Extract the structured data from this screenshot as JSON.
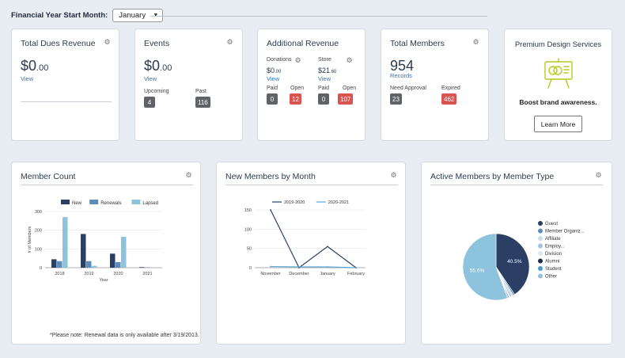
{
  "financial": {
    "label": "Financial Year Start Month:",
    "selected": "January"
  },
  "dues": {
    "title": "Total Dues Revenue",
    "value": "$0",
    "decimals": ".00",
    "link": "View"
  },
  "events": {
    "title": "Events",
    "value": "$0",
    "decimals": ".00",
    "link": "View",
    "upcoming_label": "Upcoming",
    "upcoming": "4",
    "past_label": "Past",
    "past": "116"
  },
  "additional": {
    "title": "Additional Revenue",
    "donations": {
      "label": "Donations",
      "value": "$0",
      "decimals": ".00",
      "link": "View",
      "paid_label": "Paid",
      "paid": "0",
      "open_label": "Open",
      "open": "12"
    },
    "store": {
      "label": "Store",
      "value": "$21",
      "decimals": ".60",
      "link": "View",
      "paid_label": "Paid",
      "paid": "0",
      "open_label": "Open",
      "open": "107"
    }
  },
  "members": {
    "title": "Total Members",
    "value": "954",
    "link": "Records",
    "approval_label": "Need Approval",
    "approval": "23",
    "expired_label": "Expired",
    "expired": "462"
  },
  "premium": {
    "title": "Premium Design Services",
    "tagline": "Boost brand awareness.",
    "button": "Learn More"
  },
  "member_count": {
    "title": "Member Count",
    "note": "*Please note: Renewal data is only available after 3/19/2013."
  },
  "new_members": {
    "title": "New Members by Month"
  },
  "active_members": {
    "title": "Active Members by Member Type"
  },
  "chart_data": [
    {
      "type": "bar",
      "title": "Member Count",
      "categories": [
        "2018",
        "2019",
        "2020",
        "2021"
      ],
      "series": [
        {
          "name": "New",
          "values": [
            45,
            180,
            75,
            3
          ],
          "color": "#2a3f63"
        },
        {
          "name": "Renewals",
          "values": [
            35,
            35,
            30,
            2
          ],
          "color": "#5b8db8"
        },
        {
          "name": "Lapsed",
          "values": [
            270,
            10,
            165,
            0
          ],
          "color": "#8dc3dc"
        }
      ],
      "xlabel": "Year",
      "ylabel": "# of Members",
      "ylim": [
        0,
        300
      ],
      "yticks": [
        "0",
        "100",
        "200",
        "300"
      ],
      "legend": "top"
    },
    {
      "type": "line",
      "title": "New Members by Month",
      "categories": [
        "November",
        "December",
        "January",
        "February"
      ],
      "series": [
        {
          "name": "2019-2020",
          "values": [
            150,
            0,
            55,
            0
          ],
          "color": "#2a3f63"
        },
        {
          "name": "2020-2021",
          "values": [
            3,
            2,
            2,
            0
          ],
          "color": "#5ba7d6"
        }
      ],
      "ylim": [
        0,
        150
      ],
      "yticks": [
        "0",
        "50",
        "100",
        "150"
      ],
      "legend": "top"
    },
    {
      "type": "pie",
      "title": "Active Members by Member Type",
      "legend": "right",
      "slices": [
        {
          "name": "Guest",
          "value": 40.5,
          "label": "40.5%",
          "color": "#2a3f63"
        },
        {
          "name": "Member Organiz...",
          "value": 0.8,
          "label": "",
          "color": "#5b8db8"
        },
        {
          "name": "Affiliate",
          "value": 0.9,
          "label": "",
          "color": "#c7deee"
        },
        {
          "name": "Employ...",
          "value": 0.8,
          "label": "",
          "color": "#9cc4de"
        },
        {
          "name": "Division",
          "value": 0.6,
          "label": "",
          "color": "#dbe7f0"
        },
        {
          "name": "Alumni",
          "value": 0.4,
          "label": "",
          "color": "#1e2e4a"
        },
        {
          "name": "Student",
          "value": 0.4,
          "label": "",
          "color": "#4a9ccf"
        },
        {
          "name": "Other",
          "value": 55.6,
          "label": "55.6%",
          "color": "#8dc3dc"
        }
      ]
    }
  ]
}
